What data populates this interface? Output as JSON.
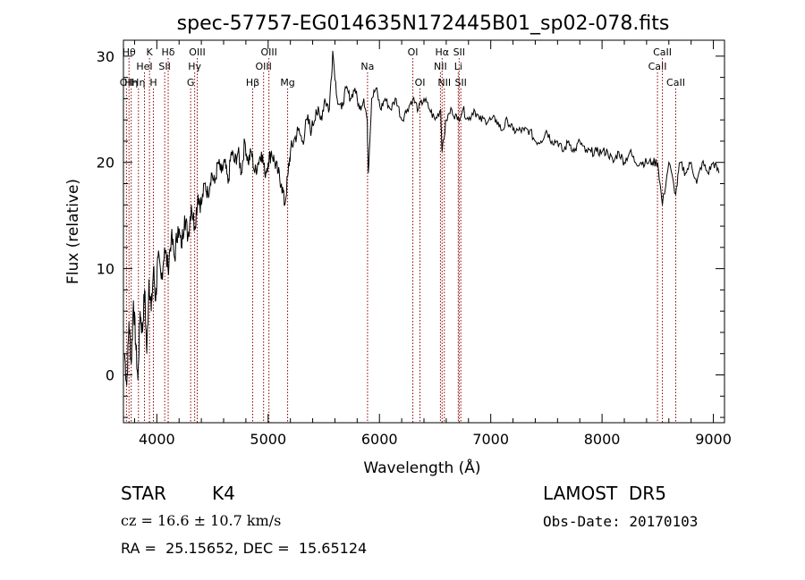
{
  "chart_data": {
    "type": "line",
    "title": "spec-57757-EG014635N172445B01_sp02-078.fits",
    "xlabel": "Wavelength (Å)",
    "ylabel": "Flux (relative)",
    "xlim": [
      3700,
      9100
    ],
    "ylim": [
      -4.5,
      31.5
    ],
    "x_ticks": [
      {
        "value": 4000,
        "label": "4000"
      },
      {
        "value": 5000,
        "label": "5000"
      },
      {
        "value": 6000,
        "label": "6000"
      },
      {
        "value": 7000,
        "label": "7000"
      },
      {
        "value": 8000,
        "label": "8000"
      },
      {
        "value": 9000,
        "label": "9000"
      }
    ],
    "y_ticks": [
      {
        "value": 0,
        "label": "0"
      },
      {
        "value": 10,
        "label": "10"
      },
      {
        "value": 20,
        "label": "20"
      },
      {
        "value": 30,
        "label": "30"
      }
    ],
    "grid": false,
    "legend": "none",
    "line_color": "#000000",
    "marker_color": "#8b0000",
    "series": [
      {
        "x": [
          3710,
          3730,
          3750,
          3770,
          3790,
          3810,
          3830,
          3850,
          3870,
          3890,
          3910,
          3930,
          3950,
          3970,
          3990,
          4010,
          4040,
          4070,
          4100,
          4130,
          4160,
          4190,
          4220,
          4250,
          4280,
          4310,
          4340,
          4370,
          4400,
          4430,
          4460,
          4490,
          4520,
          4550,
          4580,
          4610,
          4640,
          4670,
          4700,
          4730,
          4760,
          4790,
          4820,
          4850,
          4880,
          4910,
          4940,
          4970,
          5000,
          5030,
          5060,
          5090,
          5120,
          5150,
          5180,
          5200,
          5230,
          5270,
          5310,
          5350,
          5390,
          5430,
          5470,
          5510,
          5550,
          5580,
          5620,
          5660,
          5700,
          5740,
          5780,
          5820,
          5860,
          5890,
          5900,
          5930,
          5970,
          6010,
          6050,
          6100,
          6150,
          6200,
          6250,
          6300,
          6350,
          6400,
          6450,
          6500,
          6550,
          6563,
          6600,
          6650,
          6700,
          6750,
          6800,
          6850,
          6900,
          6950,
          7000,
          7050,
          7100,
          7150,
          7200,
          7250,
          7300,
          7350,
          7400,
          7450,
          7500,
          7550,
          7600,
          7650,
          7700,
          7750,
          7800,
          7850,
          7900,
          7950,
          8000,
          8050,
          8100,
          8150,
          8200,
          8250,
          8300,
          8350,
          8400,
          8450,
          8500,
          8542,
          8600,
          8662,
          8700,
          8750,
          8800,
          8850,
          8900,
          8950,
          9000,
          9050
        ],
        "y": [
          2,
          -1,
          5,
          1,
          7,
          3,
          -0.5,
          6,
          4,
          8,
          2,
          9,
          6,
          10,
          7,
          11,
          9,
          12,
          10,
          13,
          11,
          14,
          12,
          15,
          13,
          16,
          14,
          17,
          16,
          18,
          17,
          19,
          18,
          20,
          19,
          20,
          18,
          21,
          20,
          21,
          19,
          22,
          20,
          21,
          19,
          20,
          21,
          19,
          20,
          21,
          20,
          19,
          18,
          16,
          19,
          21,
          22,
          23,
          22,
          24,
          23,
          25,
          24,
          26,
          25,
          30.5,
          26,
          25,
          27,
          26,
          27,
          25,
          26,
          24,
          19,
          26,
          27,
          25,
          26,
          25,
          26,
          24,
          25,
          26,
          25,
          26,
          25,
          24,
          25,
          21,
          24,
          25,
          24,
          25,
          24,
          25,
          24,
          24,
          24,
          24,
          23,
          24,
          23,
          23,
          23,
          23,
          22,
          22,
          23,
          22,
          22,
          21,
          22,
          21,
          22,
          21,
          21,
          21,
          21,
          21,
          20,
          21,
          20,
          21,
          20,
          20,
          20,
          20,
          20,
          16,
          20,
          17,
          20,
          19,
          20,
          18,
          20,
          19,
          20,
          19
        ]
      }
    ],
    "line_markers": [
      {
        "x": 3727,
        "label": "OII",
        "row": 3
      },
      {
        "x": 3750,
        "label": "Hθ",
        "row": 1
      },
      {
        "x": 3770,
        "label": "Hη",
        "row": 3
      },
      {
        "x": 3835,
        "label": "Hη",
        "row": 3
      },
      {
        "x": 3889,
        "label": "HeI",
        "row": 2
      },
      {
        "x": 3934,
        "label": "K",
        "row": 1
      },
      {
        "x": 3969,
        "label": "H",
        "row": 3
      },
      {
        "x": 4071,
        "label": "SII",
        "row": 2
      },
      {
        "x": 4102,
        "label": "Hδ",
        "row": 1
      },
      {
        "x": 4304,
        "label": "G",
        "row": 3
      },
      {
        "x": 4340,
        "label": "Hγ",
        "row": 2
      },
      {
        "x": 4363,
        "label": "OIII",
        "row": 1
      },
      {
        "x": 4861,
        "label": "Hβ",
        "row": 3
      },
      {
        "x": 4959,
        "label": "OIII",
        "row": 2
      },
      {
        "x": 5007,
        "label": "OIII",
        "row": 1
      },
      {
        "x": 5175,
        "label": "Mg",
        "row": 3
      },
      {
        "x": 5893,
        "label": "Na",
        "row": 2
      },
      {
        "x": 6300,
        "label": "OI",
        "row": 1
      },
      {
        "x": 6364,
        "label": "OI",
        "row": 3
      },
      {
        "x": 6548,
        "label": "NII",
        "row": 2
      },
      {
        "x": 6563,
        "label": "Hα",
        "row": 1
      },
      {
        "x": 6583,
        "label": "NII",
        "row": 3
      },
      {
        "x": 6708,
        "label": "Li",
        "row": 2
      },
      {
        "x": 6716,
        "label": "SII",
        "row": 1
      },
      {
        "x": 6731,
        "label": "SII",
        "row": 3
      },
      {
        "x": 8498,
        "label": "CaII",
        "row": 2
      },
      {
        "x": 8542,
        "label": "CaII",
        "row": 1
      },
      {
        "x": 8662,
        "label": "CaII",
        "row": 3
      }
    ]
  },
  "info": {
    "class": "STAR",
    "subclass": "K4",
    "survey": "LAMOST  DR5",
    "redshift": "cz = 16.6 ± 10.7 km/s",
    "obs_date": "Obs-Date: 20170103",
    "coords": "RA =  25.15652, DEC =  15.65124"
  }
}
